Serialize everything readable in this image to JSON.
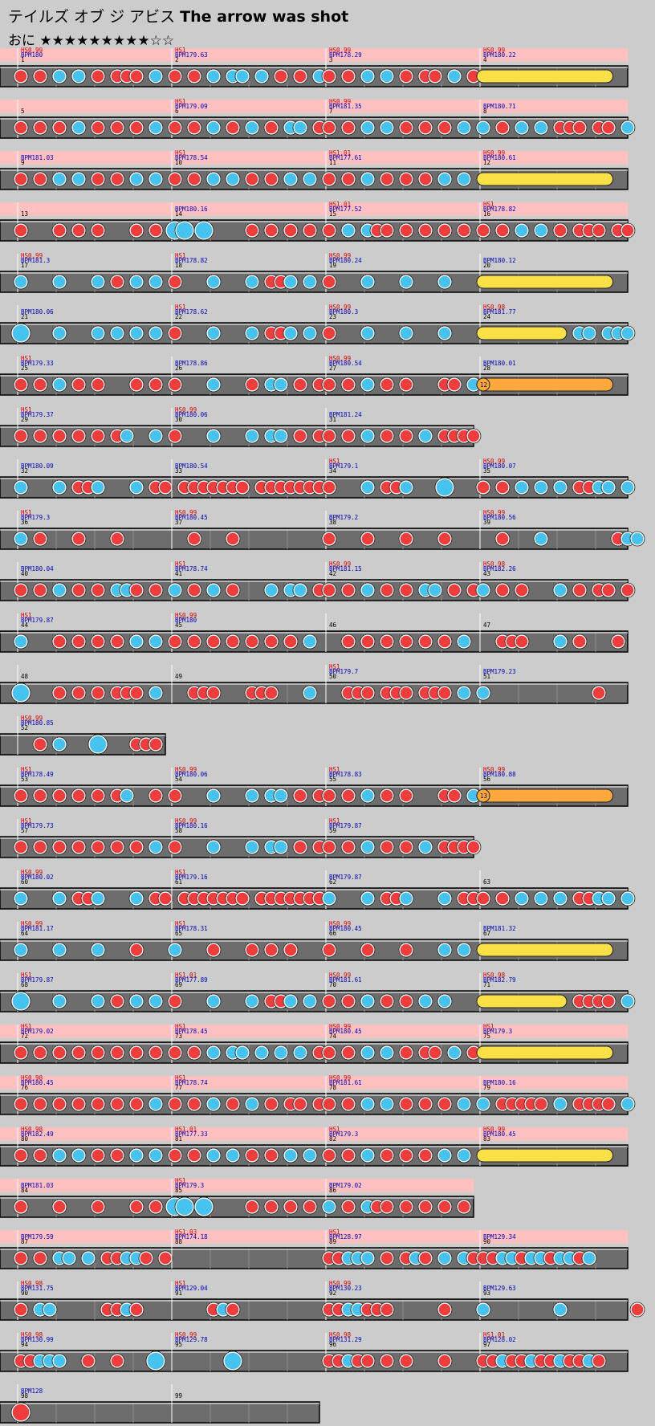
{
  "song": {
    "title_jp": "テイルズ オブ ジ アビス",
    "title_en": "The arrow was shot",
    "difficulty": "おに",
    "stars_filled": "★★★★★★★★★",
    "stars_empty": "☆☆",
    "level": 9,
    "max_level": 11
  },
  "colors": {
    "background": "#cccccc",
    "lane": "#6d6d6d",
    "lane_border": "#000000",
    "gogo_highlight": "#ffc0c0",
    "don": "#f03c3c",
    "ka": "#46c3f0",
    "drumroll": "#fce146",
    "balloon": "#ffa83c",
    "label_hs": "#e00000",
    "label_bpm": "#0000c0",
    "label_measure": "#000000"
  },
  "rows": [
    {
      "gogo": true,
      "measures": [
        {
          "num": "1",
          "hs": "HS0.99",
          "bpm": "BPM180",
          "pattern": "D.D.K.K.D.DDD.K.",
          "roll": null
        },
        {
          "num": "2",
          "hs": "HS1",
          "bpm": "BPM179.63",
          "pattern": "D.D.K.KK.K.D.D.K",
          "roll": null
        },
        {
          "num": "3",
          "hs": "HS0.99",
          "bpm": "BPM178.29",
          "pattern": "D.D.K.K.D.DD.K.D",
          "roll": null
        },
        {
          "num": "4",
          "hs": "HS0.99",
          "bpm": "BPM180.22",
          "pattern": "",
          "roll": {
            "type": "drumroll",
            "start": 0,
            "end": 0.8
          }
        }
      ]
    },
    {
      "gogo": true,
      "measures": [
        {
          "num": "5",
          "hs": "",
          "bpm": "",
          "pattern": "D.D.D.K.D.D.D.K.",
          "roll": null
        },
        {
          "num": "6",
          "hs": "HS1",
          "bpm": "BPM179.09",
          "pattern": "D.D.K.D.K.D.KK.D",
          "roll": null
        },
        {
          "num": "7",
          "hs": "HS0.99",
          "bpm": "BPM181.35",
          "pattern": "D.D.K.K.D.D.D.K.",
          "roll": null
        },
        {
          "num": "8",
          "hs": "",
          "bpm": "BPM180.71",
          "pattern": "K.D.K.K.DDD.DD.K",
          "roll": null
        }
      ]
    },
    {
      "gogo": true,
      "measures": [
        {
          "num": "9",
          "hs": "",
          "bpm": "BPM181.03",
          "pattern": "D.D.K.K.D.D.K.K.",
          "roll": null
        },
        {
          "num": "10",
          "hs": "HS1",
          "bpm": "BPM178.54",
          "pattern": "D.D.K.K.D.D.K.K.",
          "roll": null
        },
        {
          "num": "11",
          "hs": "HS1.01",
          "bpm": "BPM177.61",
          "pattern": "D.D.K.D.D.D.K.K.",
          "roll": null
        },
        {
          "num": "12",
          "hs": "HS0.99",
          "bpm": "BPM180.61",
          "pattern": "",
          "roll": {
            "type": "drumroll",
            "start": 0,
            "end": 0.8
          }
        }
      ]
    },
    {
      "gogo": true,
      "measures": [
        {
          "num": "13",
          "hs": "",
          "bpm": "",
          "pattern": "D...D.D.D...D.D.",
          "roll": null
        },
        {
          "num": "14",
          "hs": "",
          "bpm": "BPM180.16",
          "pattern": "BB.B....D.D.D.D.",
          "roll": null
        },
        {
          "num": "15",
          "hs": "HS1.01",
          "bpm": "BPM177.52",
          "pattern": "D.K.KDD.D.D.D.D.",
          "roll": null
        },
        {
          "num": "16",
          "hs": "HS1",
          "bpm": "BPM178.82",
          "pattern": "D.D.K.K.D.DDD.DD",
          "roll": null
        }
      ]
    },
    {
      "gogo": false,
      "measures": [
        {
          "num": "17",
          "hs": "HS0.99",
          "bpm": "BPM181.3",
          "pattern": "K...K...K.D.K.K.",
          "roll": null
        },
        {
          "num": "18",
          "hs": "HS1",
          "bpm": "BPM178.82",
          "pattern": "D...K...K.DDK.K.",
          "roll": null
        },
        {
          "num": "19",
          "hs": "HS0.99",
          "bpm": "BPM180.24",
          "pattern": "D...K...K...K...",
          "roll": null
        },
        {
          "num": "20",
          "hs": "",
          "bpm": "BPM180.12",
          "pattern": "",
          "roll": {
            "type": "drumroll",
            "start": 0,
            "end": 0.8
          }
        }
      ]
    },
    {
      "gogo": false,
      "measures": [
        {
          "num": "21",
          "hs": "",
          "bpm": "BPM180.06",
          "pattern": "B...K...K.K.K.K.",
          "roll": null
        },
        {
          "num": "22",
          "hs": "HS1",
          "bpm": "BPM178.62",
          "pattern": "D...K...K.DDK.K.",
          "roll": null
        },
        {
          "num": "23",
          "hs": "HS0.99",
          "bpm": "BPM180.3",
          "pattern": "D...K...K...K...",
          "roll": null
        },
        {
          "num": "24",
          "hs": "HS0.98",
          "bpm": "BPM181.77",
          "pattern": "..........KK.KKK",
          "roll": {
            "type": "drumroll",
            "start": 0,
            "end": 0.5
          }
        }
      ]
    },
    {
      "gogo": false,
      "measures": [
        {
          "num": "25",
          "hs": "HS1",
          "bpm": "BPM179.33",
          "pattern": "D.D.K.D.D...D.D.",
          "roll": null
        },
        {
          "num": "26",
          "hs": "",
          "bpm": "BPM178.86",
          "pattern": "D...K...D.KK.D.D",
          "roll": null
        },
        {
          "num": "27",
          "hs": "HS0.99",
          "bpm": "BPM180.54",
          "pattern": "D.D.K.D.D...DD.K",
          "roll": null
        },
        {
          "num": "28",
          "hs": "",
          "bpm": "BPM180.01",
          "pattern": "",
          "roll": {
            "type": "balloon",
            "start": 0,
            "end": 0.8,
            "count": "12"
          }
        }
      ]
    },
    {
      "gogo": false,
      "width": 3,
      "measures": [
        {
          "num": "29",
          "hs": "HS1",
          "bpm": "BPM179.37",
          "pattern": "D.D.D.D.D.DK..K.",
          "roll": null
        },
        {
          "num": "30",
          "hs": "HS0.99",
          "bpm": "BPM180.06",
          "pattern": "D...K...K.KK.D.D",
          "roll": null
        },
        {
          "num": "31",
          "hs": "",
          "bpm": "BPM181.24",
          "pattern": "D.D.K.D.D.K.DDDD",
          "roll": null
        }
      ]
    },
    {
      "gogo": false,
      "measures": [
        {
          "num": "32",
          "hs": "",
          "bpm": "BPM180.09",
          "pattern": "K...K.DDK...K.DD",
          "roll": null
        },
        {
          "num": "33",
          "hs": "",
          "bpm": "BPM180.54",
          "pattern": ".DDDDDDD.DDDDDDD",
          "roll": null
        },
        {
          "num": "34",
          "hs": "HS1",
          "bpm": "BPM179.1",
          "pattern": "D...K.DDK...B...",
          "roll": null
        },
        {
          "num": "35",
          "hs": "HS0.99",
          "bpm": "BPM180.07",
          "pattern": "D.D.K.K.K.DDKK.K",
          "roll": null
        }
      ]
    },
    {
      "gogo": false,
      "measures": [
        {
          "num": "36",
          "hs": "HS1",
          "bpm": "BPM179.3",
          "pattern": "K.D...D...D.....",
          "roll": null
        },
        {
          "num": "37",
          "hs": "HS0.99",
          "bpm": "BPM180.45",
          "pattern": "..D...D.........",
          "roll": null
        },
        {
          "num": "38",
          "hs": "",
          "bpm": "BPM179.2",
          "pattern": "D...D...D...D...",
          "roll": null
        },
        {
          "num": "39",
          "hs": "HS0.99",
          "bpm": "BPM180.56",
          "pattern": "..D...K.......DKK",
          "roll": null
        }
      ]
    },
    {
      "gogo": false,
      "measures": [
        {
          "num": "40",
          "hs": "",
          "bpm": "BPM180.04",
          "pattern": "D.D.K.D.D.KKD.D.",
          "roll": null
        },
        {
          "num": "41",
          "hs": "HS1",
          "bpm": "BPM178.74",
          "pattern": "K.D.K.D...K.KK.D",
          "roll": null
        },
        {
          "num": "42",
          "hs": "HS0.99",
          "bpm": "BPM181.15",
          "pattern": "D.D.K.D.D.KK.D.D",
          "roll": null
        },
        {
          "num": "43",
          "hs": "HS0.98",
          "bpm": "BPM182.26",
          "pattern": "K.D.D...K.D.DD.D",
          "roll": null
        }
      ]
    },
    {
      "gogo": false,
      "measures": [
        {
          "num": "44",
          "hs": "HS1",
          "bpm": "BPM179.87",
          "pattern": "K...D.D.D.D.K.K.",
          "roll": null
        },
        {
          "num": "45",
          "hs": "HS0.99",
          "bpm": "BPM180",
          "pattern": "D.D.D.D.D.D.D.K.",
          "roll": null
        },
        {
          "num": "46",
          "hs": "",
          "bpm": "",
          "pattern": "..D.D.D.D.D.D.K.",
          "roll": null
        },
        {
          "num": "47",
          "hs": "",
          "bpm": "",
          "pattern": "..DDD...K.D...D.",
          "roll": null
        }
      ]
    },
    {
      "gogo": false,
      "measures": [
        {
          "num": "48",
          "hs": "",
          "bpm": "",
          "pattern": "B...D.D.D.DDD.K.",
          "roll": null
        },
        {
          "num": "49",
          "hs": "",
          "bpm": "",
          "pattern": "..DDD...DDD...K.",
          "roll": null
        },
        {
          "num": "50",
          "hs": "HS1",
          "bpm": "BPM179.7",
          "pattern": "..DDD.DDD.DDD.K.",
          "roll": null
        },
        {
          "num": "51",
          "hs": "",
          "bpm": "BPM179.23",
          "pattern": "K...........D...",
          "roll": null
        }
      ]
    },
    {
      "gogo": false,
      "width": 1,
      "measures": [
        {
          "num": "52",
          "hs": "HS0.99",
          "bpm": "BPM180.85",
          "pattern": "..D.K...B...DDD.",
          "roll": null
        }
      ]
    },
    {
      "gogo": false,
      "measures": [
        {
          "num": "53",
          "hs": "HS1",
          "bpm": "BPM178.49",
          "pattern": "D.D.D.D.D.DK..D.",
          "roll": null
        },
        {
          "num": "54",
          "hs": "HS0.99",
          "bpm": "BPM180.06",
          "pattern": "D...K...K.KK.D.D",
          "roll": null
        },
        {
          "num": "55",
          "hs": "HS1",
          "bpm": "BPM178.83",
          "pattern": "D.D.K.D.D...DD.K",
          "roll": null
        },
        {
          "num": "56",
          "hs": "HS0.99",
          "bpm": "BPM180.88",
          "pattern": "",
          "roll": {
            "type": "balloon",
            "start": 0,
            "end": 0.8,
            "count": "13"
          }
        }
      ]
    },
    {
      "gogo": false,
      "width": 3,
      "measures": [
        {
          "num": "57",
          "hs": "HS1",
          "bpm": "BPM179.73",
          "pattern": "D.D.D.D.D.D.D.K.",
          "roll": null
        },
        {
          "num": "58",
          "hs": "HS0.99",
          "bpm": "BPM180.16",
          "pattern": "D...K...K.KK.D.D",
          "roll": null
        },
        {
          "num": "59",
          "hs": "HS1",
          "bpm": "BPM179.87",
          "pattern": "D.D.K.D.D.K.DDDD",
          "roll": null
        }
      ]
    },
    {
      "gogo": false,
      "measures": [
        {
          "num": "60",
          "hs": "HS0.99",
          "bpm": "BPM180.02",
          "pattern": "K...K.DDK...K.DD",
          "roll": null
        },
        {
          "num": "61",
          "hs": "HS1",
          "bpm": "BPM179.16",
          "pattern": ".DDDDDDD.DDDDDDD",
          "roll": null
        },
        {
          "num": "62",
          "hs": "",
          "bpm": "BPM179.87",
          "pattern": "K...K.DDK...K.DD",
          "roll": null
        },
        {
          "num": "63",
          "hs": "",
          "bpm": "",
          "pattern": "D.D.K.K.K.DDKK.K",
          "roll": null
        }
      ]
    },
    {
      "gogo": false,
      "measures": [
        {
          "num": "64",
          "hs": "HS0.99",
          "bpm": "BPM181.17",
          "pattern": "K...K...K...D...",
          "roll": null
        },
        {
          "num": "65",
          "hs": "HS1",
          "bpm": "BPM178.31",
          "pattern": "K...D...D.D.D...",
          "roll": null
        },
        {
          "num": "66",
          "hs": "HS0.99",
          "bpm": "BPM180.45",
          "pattern": "D...D...D...K.K.",
          "roll": null
        },
        {
          "num": "67",
          "hs": "",
          "bpm": "BPM181.32",
          "pattern": "",
          "roll": {
            "type": "drumroll",
            "start": 0,
            "end": 0.8
          }
        }
      ]
    },
    {
      "gogo": false,
      "measures": [
        {
          "num": "68",
          "hs": "HS1",
          "bpm": "BPM179.87",
          "pattern": "B...K...K.D.K.K.",
          "roll": null
        },
        {
          "num": "69",
          "hs": "HS1.01",
          "bpm": "BPM177.89",
          "pattern": "D...K...K.DDK.K.",
          "roll": null
        },
        {
          "num": "70",
          "hs": "HS0.99",
          "bpm": "BPM181.61",
          "pattern": "D.D.K.D.D.K.K...",
          "roll": null
        },
        {
          "num": "71",
          "hs": "HS0.98",
          "bpm": "BPM182.79",
          "pattern": "..........DDDD.K",
          "roll": {
            "type": "drumroll",
            "start": 0,
            "end": 0.5
          }
        }
      ]
    },
    {
      "gogo": true,
      "measures": [
        {
          "num": "72",
          "hs": "HS1",
          "bpm": "BPM179.02",
          "pattern": "D.D.D.D.D.D.D.D.",
          "roll": null
        },
        {
          "num": "73",
          "hs": "HS1",
          "bpm": "BPM178.45",
          "pattern": "D.D.K.KK.K.K.K.D",
          "roll": null
        },
        {
          "num": "74",
          "hs": "HS0.99",
          "bpm": "BPM180.45",
          "pattern": "D.D.K.K.D.DD.K.D",
          "roll": null
        },
        {
          "num": "75",
          "hs": "HS1",
          "bpm": "BPM179.3",
          "pattern": "",
          "roll": {
            "type": "drumroll",
            "start": 0,
            "end": 0.8
          }
        }
      ]
    },
    {
      "gogo": true,
      "measures": [
        {
          "num": "76",
          "hs": "HS0.98",
          "bpm": "BPM180.45",
          "pattern": "D.D.D.D.D.D.D.K.",
          "roll": null
        },
        {
          "num": "77",
          "hs": "HS1",
          "bpm": "BPM178.74",
          "pattern": "D.D.K.D.K.D.DD.D",
          "roll": null
        },
        {
          "num": "78",
          "hs": "HS0.99",
          "bpm": "BPM181.61",
          "pattern": "D.D.K.K.D.D.D.K.",
          "roll": null
        },
        {
          "num": "79",
          "hs": "",
          "bpm": "BPM180.16",
          "pattern": "K.DDDDD.K.DDDD.K",
          "roll": null
        }
      ]
    },
    {
      "gogo": true,
      "measures": [
        {
          "num": "80",
          "hs": "HS0.98",
          "bpm": "BPM182.49",
          "pattern": "D.D.K.K.D.D.K.K.",
          "roll": null
        },
        {
          "num": "81",
          "hs": "HS1.01",
          "bpm": "BPM177.33",
          "pattern": "D.D.K.K.D.D.K.K.",
          "roll": null
        },
        {
          "num": "82",
          "hs": "HS1",
          "bpm": "BPM179.3",
          "pattern": "D.D.K.D.D.D.K.K.",
          "roll": null
        },
        {
          "num": "83",
          "hs": "HS0.99",
          "bpm": "BPM180.45",
          "pattern": "",
          "roll": {
            "type": "drumroll",
            "start": 0,
            "end": 0.8
          }
        }
      ]
    },
    {
      "gogo": true,
      "width": 3,
      "measures": [
        {
          "num": "84",
          "hs": "",
          "bpm": "BPM181.03",
          "pattern": "D...D...D...D.D.",
          "roll": null
        },
        {
          "num": "85",
          "hs": "HS1",
          "bpm": "BPM179.3",
          "pattern": "BB.B....D.D.D.D.",
          "roll": null
        },
        {
          "num": "86",
          "hs": "",
          "bpm": "BPM179.02",
          "pattern": "K.D.KDD.D.D.D.D.",
          "roll": null
        }
      ]
    },
    {
      "gogo": true,
      "measures": [
        {
          "num": "87",
          "hs": "",
          "bpm": "BPM179.59",
          "pattern": "D.D.KK.K.DDKKD.D",
          "roll": null
        },
        {
          "num": "88",
          "hs": "HS1.03",
          "bpm": "BPM174.18",
          "pattern": "",
          "roll": null
        },
        {
          "num": "89",
          "hs": "HS1",
          "bpm": "BPM128.97",
          "pattern": "DDKKK.D.DKD.K.KD",
          "roll": null
        },
        {
          "num": "90",
          "hs": "",
          "bpm": "BPM129.34",
          "pattern": "DDKKDKKDKKDK",
          "roll": null
        }
      ]
    },
    {
      "gogo": false,
      "measures": [
        {
          "num": "90",
          "hs": "HS0.98",
          "bpm": "BPM131.75",
          "pattern": "D.KK.....DDKD...",
          "roll": null
        },
        {
          "num": "91",
          "hs": "HS1",
          "bpm": "BPM129.04",
          "pattern": "....DKD.........",
          "roll": null
        },
        {
          "num": "92",
          "hs": "HS0.99",
          "bpm": "BPM130.23",
          "pattern": "DDKKDDD.....D...",
          "roll": null
        },
        {
          "num": "93",
          "hs": "",
          "bpm": "BPM129.63",
          "pattern": "K.......K.......D",
          "roll": null
        }
      ]
    },
    {
      "gogo": false,
      "measures": [
        {
          "num": "94",
          "hs": "HS0.98",
          "bpm": "BPM130.99",
          "pattern": "DDKKK..D..D...B.",
          "roll": null
        },
        {
          "num": "95",
          "hs": "HS0.99",
          "bpm": "BPM129.78",
          "pattern": "......B.........",
          "roll": null
        },
        {
          "num": "96",
          "hs": "HS0.98",
          "bpm": "BPM131.29",
          "pattern": "DDKDD.D.D...D...",
          "roll": null
        },
        {
          "num": "97",
          "hs": "HS1.01",
          "bpm": "BPM128.02",
          "pattern": "DDKDDKDDKDDKD...",
          "roll": null
        }
      ]
    },
    {
      "gogo": false,
      "width": 2,
      "measures": [
        {
          "num": "98",
          "hs": "",
          "bpm": "BPM128",
          "pattern": "B...............",
          "roll": null
        },
        {
          "num": "99",
          "hs": "",
          "bpm": "",
          "pattern": "",
          "roll": null
        }
      ]
    }
  ]
}
